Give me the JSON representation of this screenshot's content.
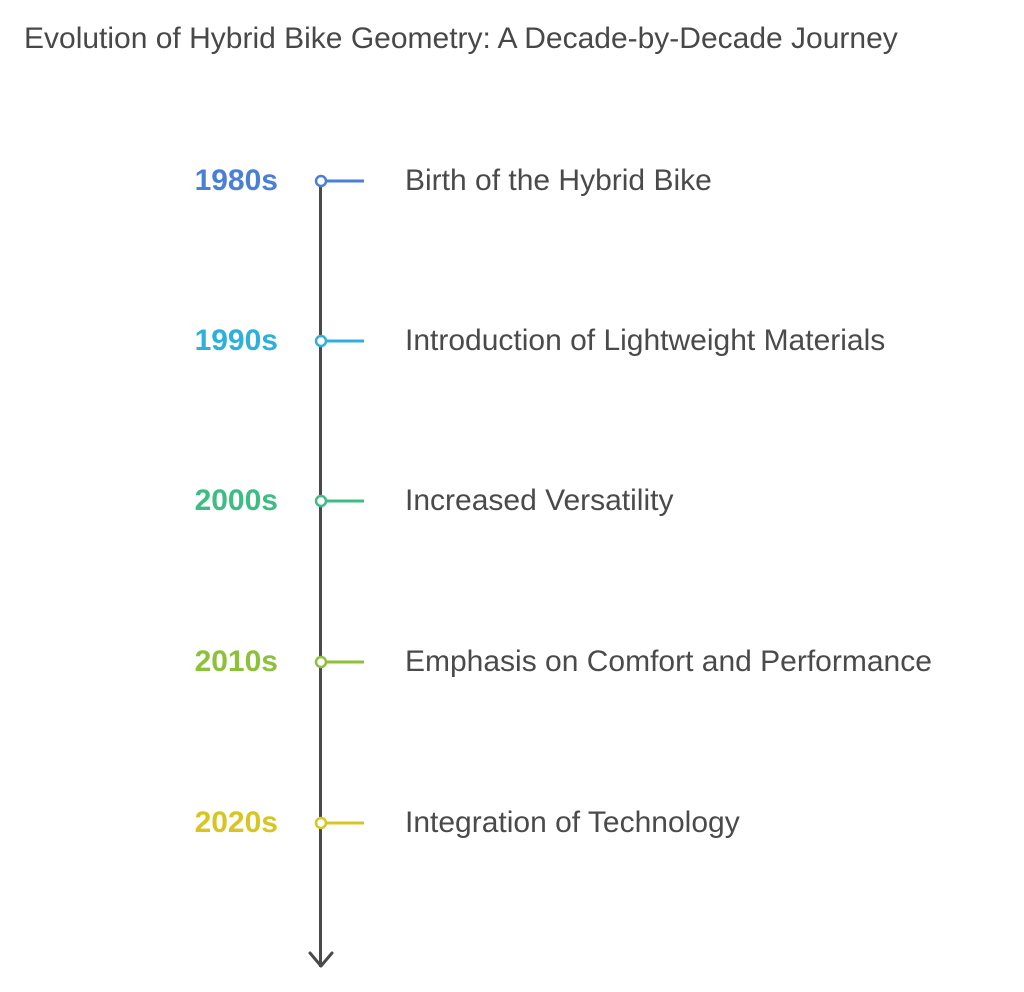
{
  "title": "Evolution of Hybrid Bike Geometry: A Decade-by-Decade Journey",
  "events": [
    {
      "decade": "1980s",
      "label": "Birth of the Hybrid Bike",
      "color": "#4a7fd8"
    },
    {
      "decade": "1990s",
      "label": "Introduction of Lightweight Materials",
      "color": "#2fb0da"
    },
    {
      "decade": "2000s",
      "label": "Increased Versatility",
      "color": "#3dbd83"
    },
    {
      "decade": "2010s",
      "label": "Emphasis on Comfort and Performance",
      "color": "#8cc13a"
    },
    {
      "decade": "2020s",
      "label": "Integration of Technology",
      "color": "#d9c521"
    }
  ],
  "axis_color": "#4a4a4a",
  "arrow_icon": "arrow-down-icon"
}
